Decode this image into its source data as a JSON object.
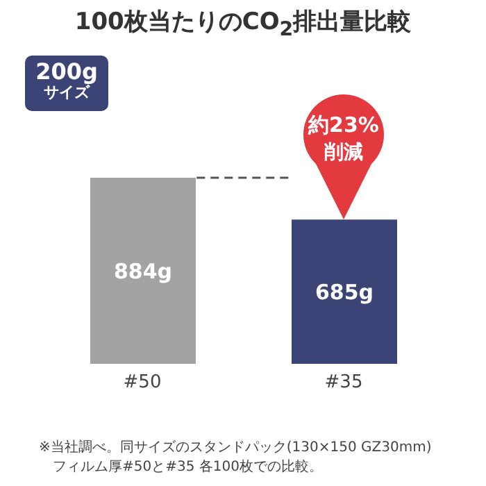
{
  "chart_data": {
    "type": "bar",
    "title": "100枚当たりのCO$_{2}$排出量比較",
    "categories": [
      "#50",
      "#35"
    ],
    "values": [
      884,
      685
    ],
    "colors": [
      "#a3a3a3",
      "#3b4475"
    ],
    "value_labels": [
      "884g",
      "685g"
    ],
    "ref_lines": [
      {
        "axis": "y",
        "value": 884,
        "color": "#555555",
        "line_style": "dashed"
      }
    ],
    "annotations": [
      "200g サイズ",
      "約23% 削減",
      "※当社調べ。同サイズのスタンドパック(130×150 GZ30mm)",
      "フィルム厚#50と#35 各100枚での比較。"
    ],
    "tick_labels": "x"
  }
}
